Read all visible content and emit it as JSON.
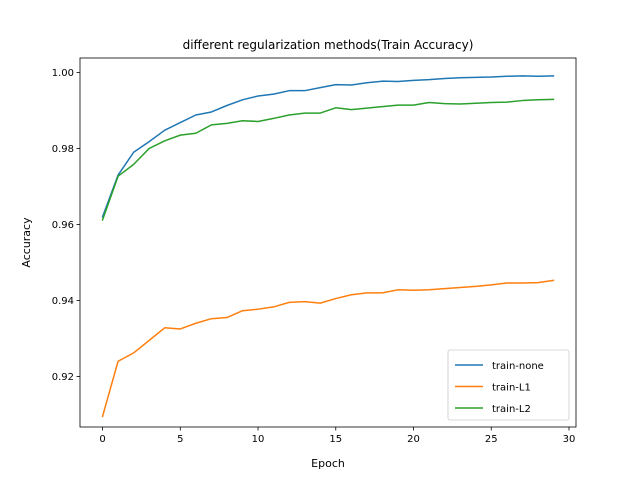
{
  "chart_data": {
    "type": "line",
    "title": "different regularization methods(Train Accuracy)",
    "xlabel": "Epoch",
    "ylabel": "Accuracy",
    "xlim": [
      -1.45,
      30.45
    ],
    "ylim": [
      0.9067,
      1.0038
    ],
    "xticks": [
      0,
      5,
      10,
      15,
      20,
      25,
      30
    ],
    "xtick_labels": [
      "0",
      "5",
      "10",
      "15",
      "20",
      "25",
      "30"
    ],
    "yticks": [
      0.92,
      0.94,
      0.96,
      0.98,
      1.0
    ],
    "ytick_labels": [
      "0.92",
      "0.94",
      "0.96",
      "0.98",
      "1.00"
    ],
    "grid": false,
    "legend_position": "lower-right",
    "x": [
      0,
      1,
      2,
      3,
      4,
      5,
      6,
      7,
      8,
      9,
      10,
      11,
      12,
      13,
      14,
      15,
      16,
      17,
      18,
      19,
      20,
      21,
      22,
      23,
      24,
      25,
      26,
      27,
      28,
      29
    ],
    "series": [
      {
        "name": "train-none",
        "color": "#1f77b4",
        "values": [
          0.962,
          0.973,
          0.979,
          0.9818,
          0.9848,
          0.9868,
          0.9888,
          0.9896,
          0.9913,
          0.9928,
          0.9938,
          0.9943,
          0.9952,
          0.9952,
          0.996,
          0.9968,
          0.9967,
          0.9973,
          0.9977,
          0.9976,
          0.9979,
          0.9981,
          0.9984,
          0.9986,
          0.9987,
          0.9988,
          0.999,
          0.9991,
          0.999,
          0.9991
        ]
      },
      {
        "name": "train-L1",
        "color": "#ff7f0e",
        "values": [
          0.9095,
          0.924,
          0.9262,
          0.9295,
          0.9328,
          0.9325,
          0.934,
          0.9352,
          0.9355,
          0.9373,
          0.9377,
          0.9383,
          0.9395,
          0.9397,
          0.9393,
          0.9405,
          0.9415,
          0.942,
          0.942,
          0.9428,
          0.9427,
          0.9428,
          0.9431,
          0.9434,
          0.9437,
          0.9441,
          0.9446,
          0.9446,
          0.9447,
          0.9453
        ]
      },
      {
        "name": "train-L2",
        "color": "#2ca02c",
        "values": [
          0.9612,
          0.9727,
          0.9758,
          0.98,
          0.982,
          0.9835,
          0.984,
          0.9862,
          0.9866,
          0.9873,
          0.9871,
          0.9879,
          0.9888,
          0.9893,
          0.9893,
          0.9907,
          0.9902,
          0.9906,
          0.991,
          0.9914,
          0.9914,
          0.9921,
          0.9918,
          0.9917,
          0.9919,
          0.9921,
          0.9922,
          0.9926,
          0.9928,
          0.9929
        ]
      }
    ]
  }
}
